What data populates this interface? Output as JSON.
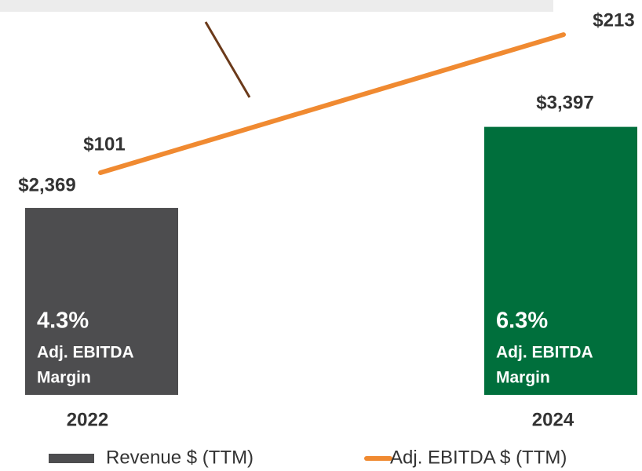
{
  "chart_data": {
    "type": "bar-line",
    "categories": [
      "2022",
      "2024"
    ],
    "series": [
      {
        "name": "Revenue $ (TTM)",
        "type": "bar",
        "color": "#4d4d4f",
        "colors": [
          "#4d4d4f",
          "#006f3c"
        ],
        "values": [
          2369,
          3397
        ],
        "value_labels": [
          "$2,369",
          "$3,397"
        ]
      },
      {
        "name": "Adj. EBITDA $ (TTM)",
        "type": "line",
        "color": "#f08a31",
        "values": [
          101,
          213
        ],
        "value_labels": [
          "$101",
          "$213"
        ]
      }
    ],
    "margin_labels": [
      "4.3%",
      "6.3%"
    ],
    "margin_caption": [
      "Adj. EBITDA",
      "Margin"
    ]
  }
}
